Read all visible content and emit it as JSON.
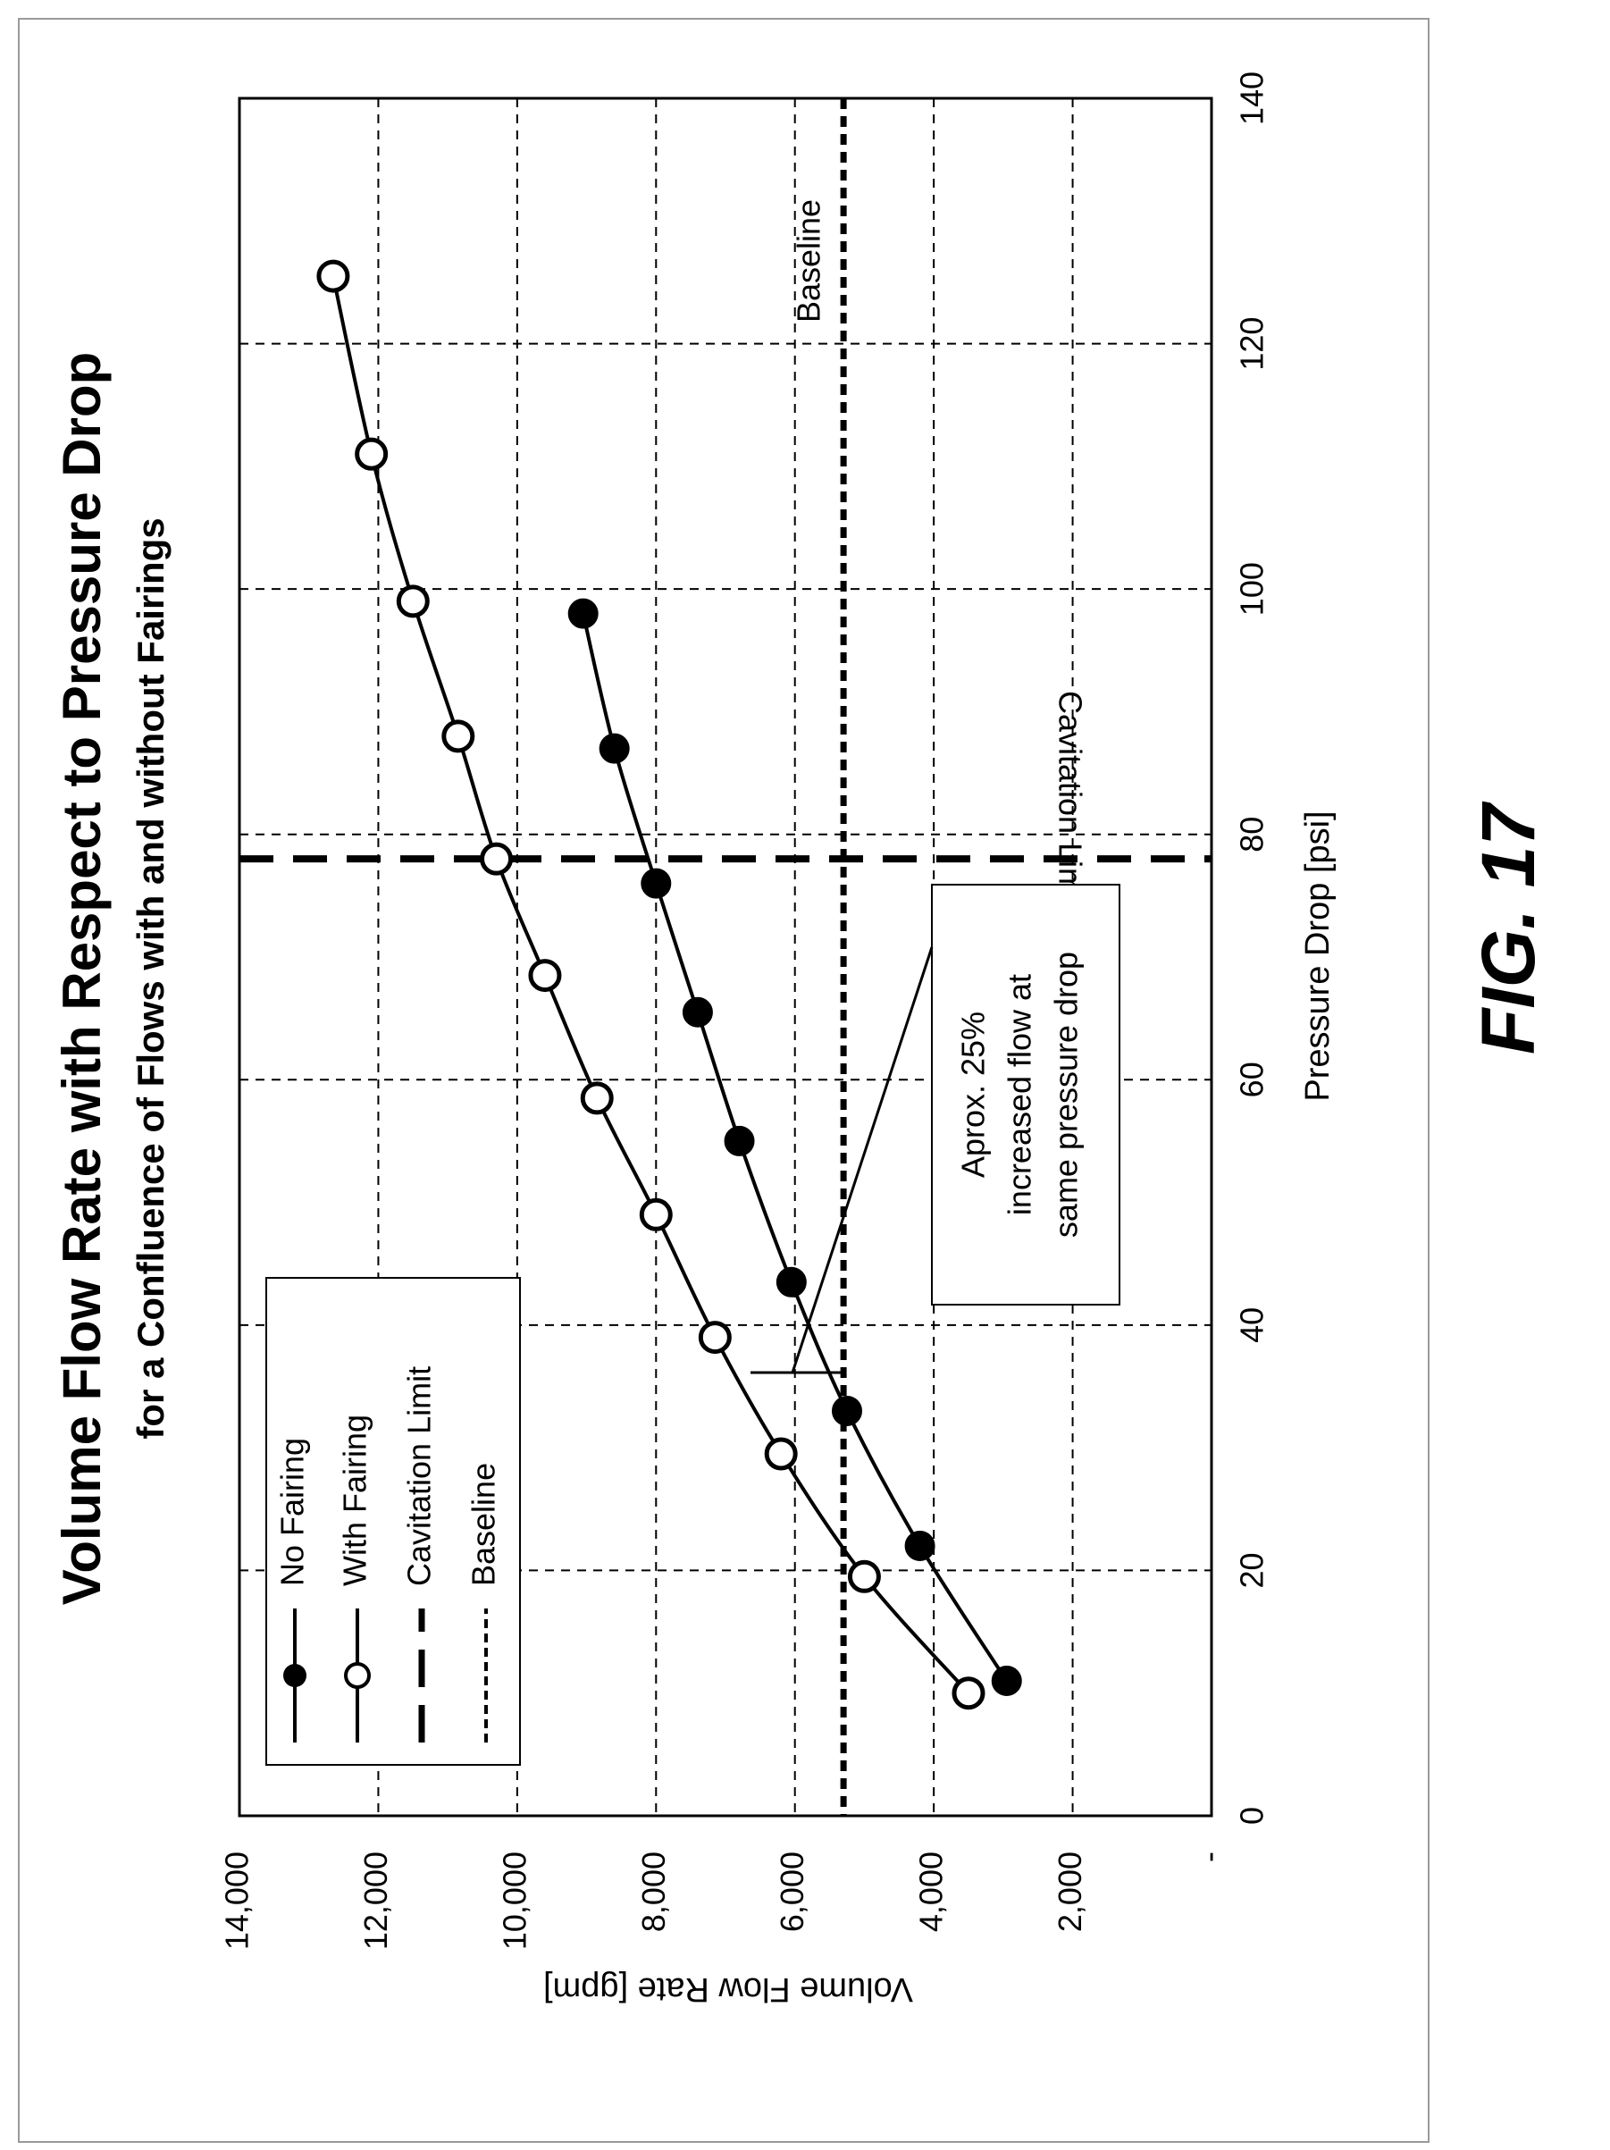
{
  "figure_label": "FIG. 17",
  "chart_data": {
    "type": "line",
    "title": "Volume Flow Rate with Respect to Pressure Drop",
    "subtitle": "for a Confluence of Flows with and without Fairings",
    "xlabel": "Pressure Drop [psi]",
    "ylabel": "Volume Flow Rate [gpm]",
    "xlim": [
      0,
      140
    ],
    "ylim": [
      0,
      14000
    ],
    "x_ticks": [
      "0",
      "20",
      "40",
      "60",
      "80",
      "100",
      "120",
      "140"
    ],
    "y_ticks": [
      "-",
      "2,000",
      "4,000",
      "6,000",
      "8,000",
      "10,000",
      "12,000",
      "14,000"
    ],
    "grid": true,
    "legend_position": "top-left",
    "series": [
      {
        "name": "No Fairing",
        "marker": "filled-circle",
        "x": [
          11,
          22,
          33,
          43.5,
          55,
          65.5,
          76,
          87,
          98
        ],
        "y": [
          2950,
          4200,
          5250,
          6050,
          6800,
          7400,
          8000,
          8600,
          9050
        ]
      },
      {
        "name": "With Fairing",
        "marker": "open-circle",
        "x": [
          10,
          19.5,
          29.5,
          39,
          49,
          58.5,
          68.5,
          78,
          88,
          99,
          111,
          125.5
        ],
        "y": [
          3500,
          5000,
          6200,
          7150,
          8000,
          8850,
          9600,
          10300,
          10850,
          11500,
          12100,
          12650
        ]
      }
    ],
    "reference_lines": [
      {
        "name": "Cavitation Limit",
        "orientation": "vertical",
        "value": 78,
        "style": "long-dash",
        "label": "Cavitation Limit"
      },
      {
        "name": "Baseline",
        "orientation": "horizontal",
        "value": 5300,
        "style": "short-dash",
        "label": "Baseline"
      }
    ],
    "annotation": {
      "lines": [
        "Aprox. 25%",
        "increased flow at",
        "same pressure drop"
      ]
    }
  }
}
